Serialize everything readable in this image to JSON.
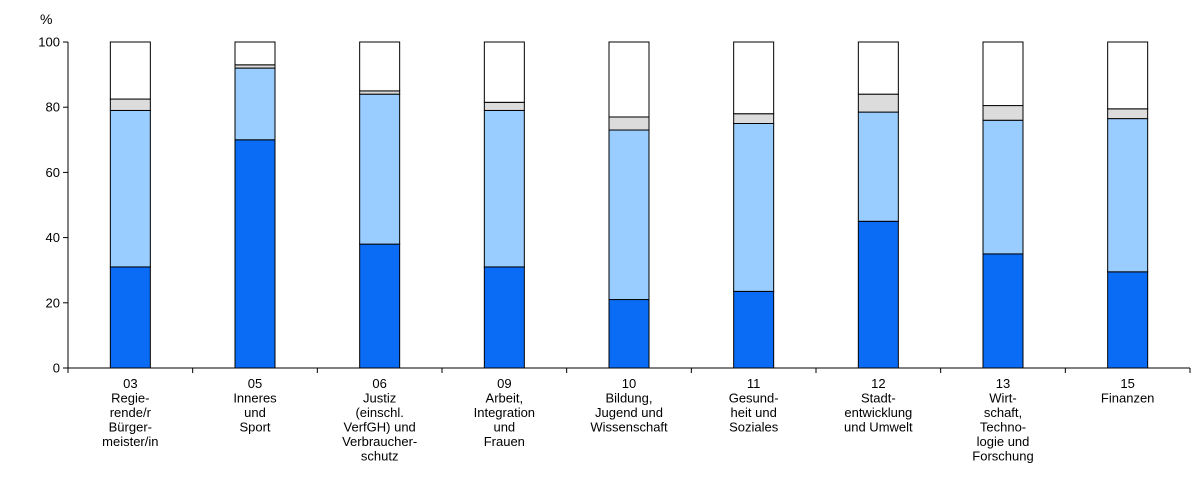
{
  "chart_data": {
    "type": "bar",
    "stacked": true,
    "unit": "%",
    "ylim": [
      0,
      100
    ],
    "yticks": [
      0,
      20,
      40,
      60,
      80,
      100
    ],
    "grid": false,
    "categories": [
      {
        "code": "03",
        "lines": [
          "Regie-",
          "rende/r",
          "Bürger-",
          "meister/in"
        ]
      },
      {
        "code": "05",
        "lines": [
          "Inneres",
          "und",
          "Sport"
        ]
      },
      {
        "code": "06",
        "lines": [
          "Justiz",
          "(einschl.",
          "VerfGH) und",
          "Verbraucher-",
          "schutz"
        ]
      },
      {
        "code": "09",
        "lines": [
          "Arbeit,",
          "Integration",
          "und",
          "Frauen"
        ]
      },
      {
        "code": "10",
        "lines": [
          "Bildung,",
          "Jugend und",
          "Wissenschaft"
        ]
      },
      {
        "code": "11",
        "lines": [
          "Gesund-",
          "heit und",
          "Soziales"
        ]
      },
      {
        "code": "12",
        "lines": [
          "Stadt-",
          "entwicklung",
          "und Umwelt"
        ]
      },
      {
        "code": "13",
        "lines": [
          "Wirt-",
          "schaft,",
          "Techno-",
          "logie und",
          "Forschung"
        ]
      },
      {
        "code": "15",
        "lines": [
          "Finanzen"
        ]
      }
    ],
    "series": [
      {
        "color": "#0a6cf5",
        "values": [
          31,
          70,
          38,
          31,
          21,
          23.5,
          45,
          35,
          29.5
        ]
      },
      {
        "color": "#99ccff",
        "values": [
          48,
          22,
          46,
          48,
          52,
          51.5,
          33.5,
          41,
          47
        ]
      },
      {
        "color": "#dcdcdc",
        "values": [
          3.5,
          1,
          1,
          2.5,
          4,
          3,
          5.5,
          4.5,
          3
        ]
      },
      {
        "color": "#ffffff",
        "values": [
          17.5,
          7,
          15,
          18.5,
          23,
          22,
          16,
          19.5,
          20.5
        ]
      }
    ]
  }
}
